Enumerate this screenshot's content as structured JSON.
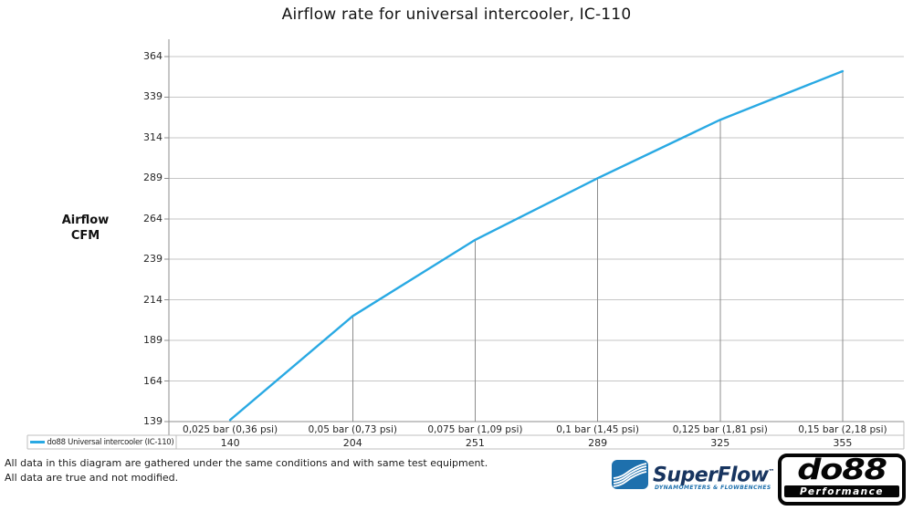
{
  "page": {
    "footer": {
      "line1": "All data in this diagram are gathered under the same conditions and with same test equipment.",
      "line2": "All data are true and not modified."
    }
  },
  "chart_data": {
    "type": "line",
    "title": "Airflow rate for universal intercooler, IC-110",
    "ylabel": "Airflow CFM",
    "ylabel_lines": [
      "Airflow",
      "CFM"
    ],
    "categories": [
      "0,025 bar (0,36 psi)",
      "0,05 bar (0,73 psi)",
      "0,075 bar (1,09 psi)",
      "0,1 bar (1,45 psi)",
      "0,125 bar (1,81 psi)",
      "0,15 bar (2,18 psi)"
    ],
    "series": [
      {
        "name": "do88 Universal intercooler (IC-110)",
        "values": [
          140,
          204,
          251,
          289,
          325,
          355
        ],
        "color": "#29a9e3"
      }
    ],
    "y_ticks": [
      364,
      339,
      314,
      289,
      264,
      239,
      214,
      189,
      164,
      139
    ],
    "ylim": [
      139,
      364
    ],
    "grid": true,
    "legend_position": "bottom-left",
    "data_table": true,
    "drop_lines": true
  },
  "logos": {
    "superflow": {
      "brand": "SuperFlow",
      "trademark": "™",
      "tagline": "DYNAMOMETERS & FLOWBENCHES"
    },
    "do88": {
      "brand": "do88",
      "tagline": "Performance"
    }
  },
  "colors": {
    "series_line": "#29a9e3",
    "gridline": "#c6c6c6",
    "axis": "#8c8c8c",
    "table_border": "#bfbfbf",
    "superflow_blue": "#1e70ad",
    "superflow_navy": "#17345f",
    "do88_black": "#050505"
  }
}
